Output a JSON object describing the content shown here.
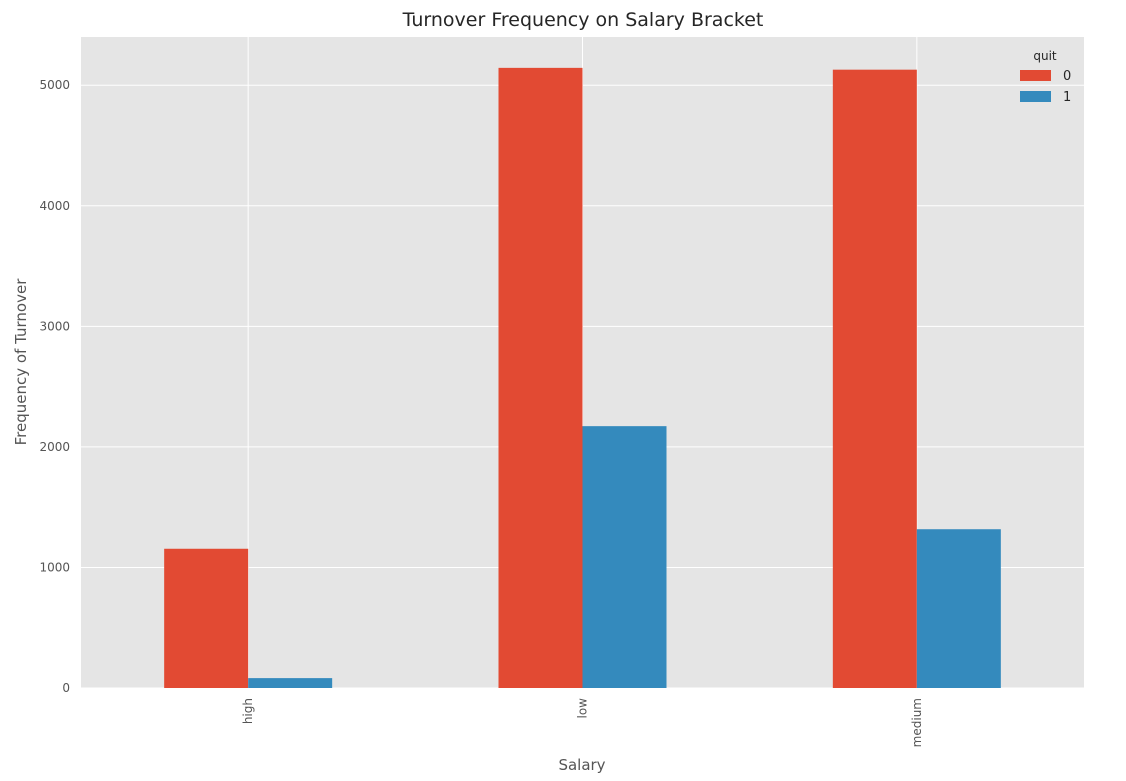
{
  "chart_data": {
    "type": "bar",
    "title": "Turnover Frequency on Salary Bracket",
    "xlabel": "Salary",
    "ylabel": "Frequency of Turnover",
    "categories": [
      "high",
      "low",
      "medium"
    ],
    "series": [
      {
        "name": "0",
        "values": [
          1155,
          5144,
          5129
        ],
        "color": "#E24A33"
      },
      {
        "name": "1",
        "values": [
          82,
          2172,
          1317
        ],
        "color": "#348ABD"
      }
    ],
    "ylim": [
      0,
      5400
    ],
    "yticks": [
      0,
      1000,
      2000,
      3000,
      4000,
      5000
    ],
    "grid": true,
    "legend": {
      "title": "quit",
      "placement": "top-right"
    },
    "colors": {
      "plot_background": "#E5E5E5",
      "grid": "#FFFFFF"
    }
  }
}
